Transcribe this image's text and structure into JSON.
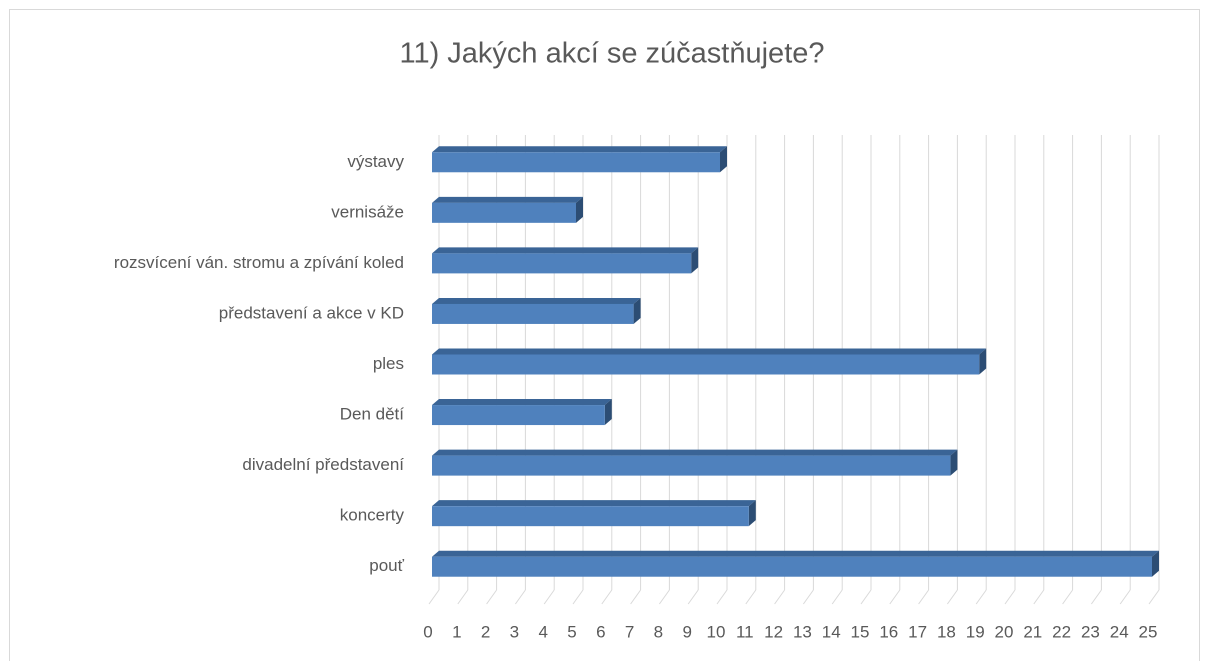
{
  "chart_data": {
    "type": "bar",
    "orientation": "horizontal",
    "title": "11) Jakých akcí se zúčastňujete?",
    "categories": [
      "výstavy",
      "vernisáže",
      "rozsvícení ván. stromu a zpívání koled",
      "představení a akce v KD",
      "ples",
      "Den dětí",
      "divadelní představení",
      "koncerty",
      "pouť"
    ],
    "values": [
      10,
      5,
      9,
      7,
      19,
      6,
      18,
      11,
      25
    ],
    "color": "#4f81bd",
    "xlim": [
      0,
      25
    ],
    "xticks": [
      0,
      1,
      2,
      3,
      4,
      5,
      6,
      7,
      8,
      9,
      10,
      11,
      12,
      13,
      14,
      15,
      16,
      17,
      18,
      19,
      20,
      21,
      22,
      23,
      24,
      25
    ],
    "grid": true
  }
}
